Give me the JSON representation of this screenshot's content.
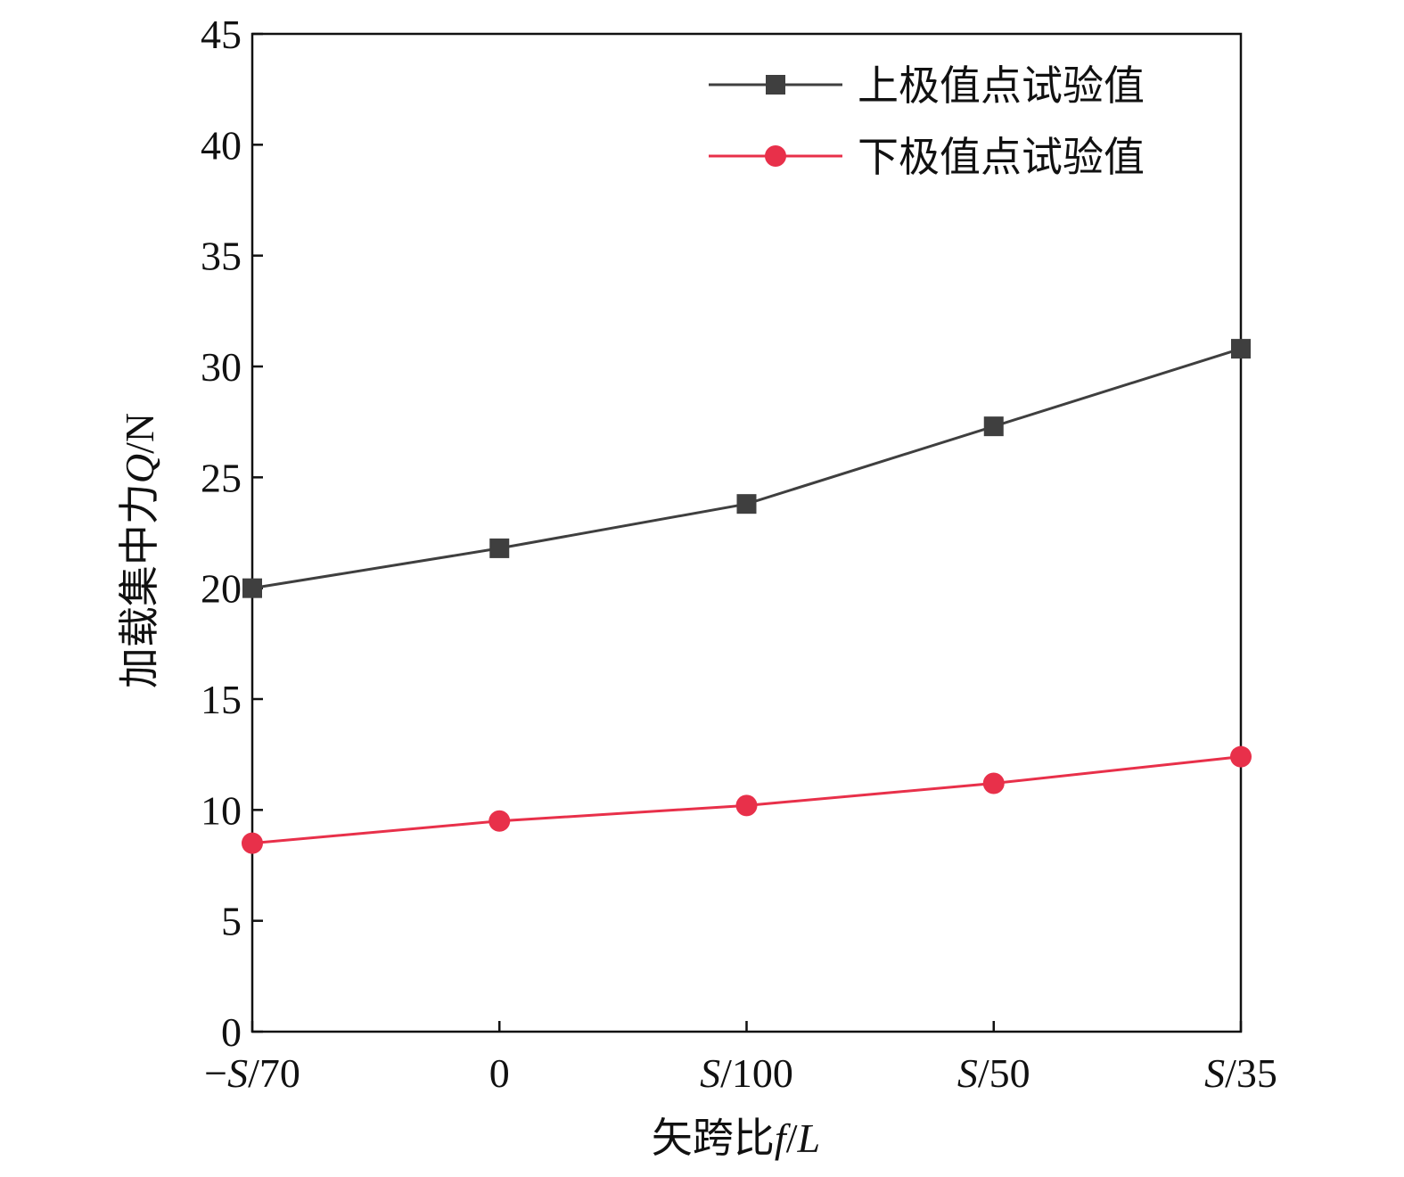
{
  "chart_data": {
    "type": "line",
    "title": "",
    "xlabel": "矢跨比f/L",
    "xlabel_parts": [
      {
        "text": "矢跨比",
        "italic": false
      },
      {
        "text": "f",
        "italic": true
      },
      {
        "text": "/",
        "italic": false
      },
      {
        "text": "L",
        "italic": true
      }
    ],
    "ylabel": "加载集中力Q/N",
    "ylabel_parts": [
      {
        "text": "加载集中力",
        "italic": false
      },
      {
        "text": "Q",
        "italic": true
      },
      {
        "text": "/N",
        "italic": false
      }
    ],
    "categories": [
      "−S/70",
      "0",
      "S/100",
      "S/50",
      "S/35"
    ],
    "category_parts": [
      [
        {
          "text": "−",
          "italic": false
        },
        {
          "text": "S",
          "italic": true
        },
        {
          "text": "/70",
          "italic": false
        }
      ],
      [
        {
          "text": "0",
          "italic": false
        }
      ],
      [
        {
          "text": "S",
          "italic": true
        },
        {
          "text": "/100",
          "italic": false
        }
      ],
      [
        {
          "text": "S",
          "italic": true
        },
        {
          "text": "/50",
          "italic": false
        }
      ],
      [
        {
          "text": "S",
          "italic": true
        },
        {
          "text": "/35",
          "italic": false
        }
      ]
    ],
    "ylim": [
      0,
      45
    ],
    "yticks": [
      0,
      5,
      10,
      15,
      20,
      25,
      30,
      35,
      40,
      45
    ],
    "grid": false,
    "legend_position": "top-right",
    "series": [
      {
        "name": "上极值点试验值",
        "values": [
          20.0,
          21.8,
          23.8,
          27.3,
          30.8
        ],
        "color": "#3f3f3f",
        "marker": "square"
      },
      {
        "name": "下极值点试验值",
        "values": [
          8.5,
          9.5,
          10.2,
          11.2,
          12.4
        ],
        "color": "#e8304a",
        "marker": "circle"
      }
    ]
  }
}
